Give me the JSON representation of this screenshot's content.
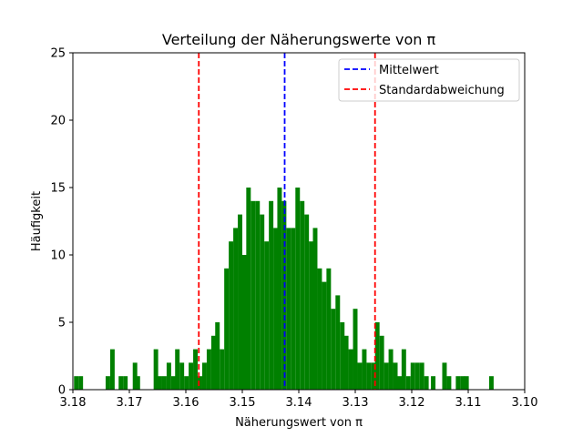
{
  "chart_data": {
    "type": "histogram",
    "title": "Verteilung der Näherungswerte von π",
    "xlabel": "Näherungswert von π",
    "ylabel": "Häufigkeit",
    "x_axis_inverted": true,
    "xlim": [
      3.18,
      3.1
    ],
    "ylim": [
      0,
      25
    ],
    "xticks": [
      "3.18",
      "3.17",
      "3.16",
      "3.15",
      "3.14",
      "3.13",
      "3.12",
      "3.11",
      "3.10"
    ],
    "yticks": [
      "0",
      "5",
      "10",
      "15",
      "20",
      "25"
    ],
    "bar_color": "#008000",
    "mean": 3.1425,
    "std_lines": [
      3.1577,
      3.1265
    ],
    "legend": {
      "placement": "top-right",
      "entries": [
        {
          "label": "Mittelwert",
          "color": "#0000ff",
          "style": "dashed"
        },
        {
          "label": "Standardabweichung",
          "color": "#ff0000",
          "style": "dashed"
        }
      ]
    },
    "bins": {
      "x": [
        3.1794,
        3.1786,
        3.1738,
        3.173,
        3.1715,
        3.1707,
        3.169,
        3.1685,
        3.1653,
        3.1646,
        3.1638,
        3.163,
        3.1622,
        3.1615,
        3.1607,
        3.1599,
        3.1591,
        3.1583,
        3.1575,
        3.1567,
        3.1559,
        3.1551,
        3.1544,
        3.1536,
        3.1528,
        3.152,
        3.1512,
        3.1504,
        3.1496,
        3.1489,
        3.1481,
        3.1473,
        3.1465,
        3.1457,
        3.1449,
        3.1441,
        3.1434,
        3.1426,
        3.1418,
        3.141,
        3.1402,
        3.1394,
        3.1386,
        3.1378,
        3.1371,
        3.1363,
        3.1355,
        3.1347,
        3.1339,
        3.1331,
        3.1323,
        3.1316,
        3.1308,
        3.13,
        3.1292,
        3.1284,
        3.1276,
        3.1268,
        3.1261,
        3.1253,
        3.1245,
        3.1237,
        3.1229,
        3.1221,
        3.1214,
        3.1206,
        3.1198,
        3.119,
        3.1182,
        3.1174,
        3.1162,
        3.1142,
        3.1134,
        3.1118,
        3.111,
        3.1103,
        3.1059
      ],
      "counts": [
        1,
        1,
        1,
        3,
        1,
        1,
        2,
        1,
        3,
        1,
        1,
        2,
        1,
        3,
        2,
        1,
        2,
        3,
        1,
        2,
        3,
        4,
        5,
        3,
        9,
        11,
        12,
        13,
        10,
        15,
        14,
        14,
        13,
        11,
        14,
        12,
        15,
        14,
        12,
        12,
        15,
        14,
        13,
        11,
        12,
        9,
        8,
        9,
        6,
        7,
        5,
        4,
        3,
        6,
        2,
        3,
        2,
        2,
        5,
        4,
        2,
        3,
        2,
        1,
        3,
        1,
        2,
        2,
        2,
        1,
        1,
        2,
        1,
        1,
        1,
        1,
        1
      ]
    }
  }
}
